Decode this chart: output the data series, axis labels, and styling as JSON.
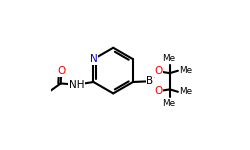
{
  "bg_color": "#ffffff",
  "bond_color": "#000000",
  "N_color": "#0000cd",
  "O_color": "#ff0000",
  "B_color": "#000000",
  "lw": 1.5,
  "fig_width": 2.5,
  "fig_height": 1.5,
  "dpi": 100,
  "xlim": [
    0.0,
    1.0
  ],
  "ylim": [
    0.0,
    1.0
  ],
  "fs": 7.5
}
